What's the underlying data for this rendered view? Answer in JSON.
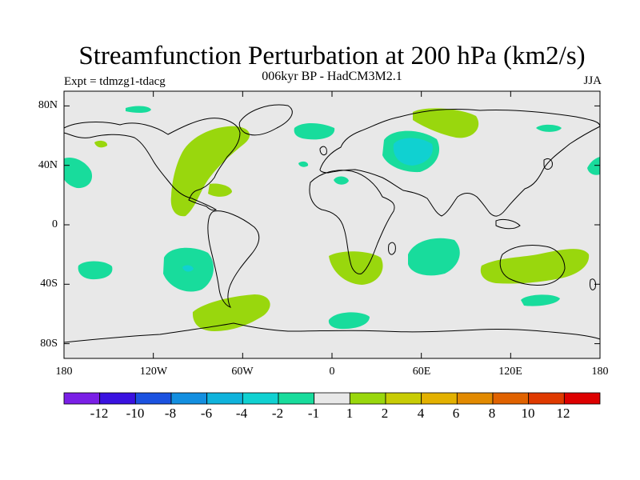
{
  "header": {
    "title": "Streamfunction Perturbation at 200 hPa (km2/s)",
    "subtitle": "006kyr BP - HadCM3M2.1",
    "experiment": "Expt = tdmzg1-tdacg",
    "season": "JJA"
  },
  "axes": {
    "lat_labels": [
      "80N",
      "40N",
      "0",
      "40S",
      "80S"
    ],
    "lon_labels": [
      "180",
      "120W",
      "60W",
      "0",
      "60E",
      "120E",
      "180"
    ]
  },
  "colorbar": {
    "colors": [
      "#7a1fe6",
      "#3a12e0",
      "#1b52e0",
      "#138fe0",
      "#0fb3dc",
      "#10d1d1",
      "#18dc9c",
      "#e8e8e8",
      "#99d70d",
      "#c8cc05",
      "#e3b100",
      "#e28a00",
      "#e06200",
      "#df3a00",
      "#dd0000"
    ],
    "labels": [
      "-12",
      "-10",
      "-8",
      "-6",
      "-4",
      "-2",
      "-1",
      "1",
      "2",
      "4",
      "6",
      "8",
      "10",
      "12"
    ]
  },
  "regions": [
    {
      "name": "positive-north-america",
      "level": "2",
      "color": "#99d70d"
    },
    {
      "name": "positive-south-atlantic-africa",
      "level": "2",
      "color": "#99d70d"
    },
    {
      "name": "positive-southern-ocean-south-america",
      "level": "2",
      "color": "#99d70d"
    },
    {
      "name": "positive-australia",
      "level": "2",
      "color": "#99d70d"
    },
    {
      "name": "positive-north-siberia",
      "level": "2",
      "color": "#99d70d"
    },
    {
      "name": "negative-west-asia",
      "level": "-2",
      "color": "#18dc9c"
    },
    {
      "name": "negative-west-asia-core",
      "level": "-4",
      "color": "#10d1d1"
    },
    {
      "name": "negative-south-pacific",
      "level": "-2",
      "color": "#18dc9c"
    },
    {
      "name": "negative-south-pacific-core",
      "level": "-4",
      "color": "#10d1d1"
    },
    {
      "name": "negative-south-indian-ocean",
      "level": "-2",
      "color": "#18dc9c"
    },
    {
      "name": "negative-pacific-midlatitude",
      "level": "-2",
      "color": "#18dc9c"
    }
  ],
  "colors": {
    "background": "#e8e8e8",
    "coast": "#000000"
  }
}
